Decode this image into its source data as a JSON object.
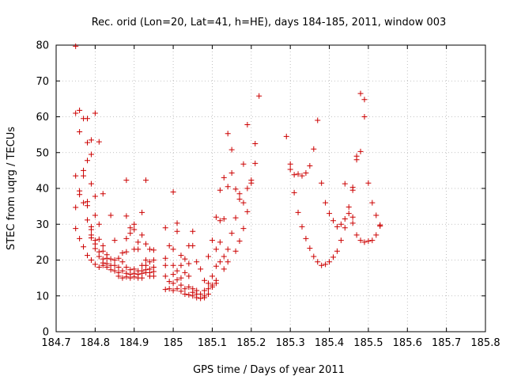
{
  "chart_data": {
    "type": "scatter",
    "title": "Rec. orid (Lon=20, Lat=41, h=HE), days 184-185, 2011, window 003",
    "xlabel": "GPS time / Days of year 2011",
    "ylabel": "STEC from uqrg / TECUs",
    "xlim": [
      184.7,
      185.8
    ],
    "ylim": [
      0,
      80
    ],
    "xticks": [
      184.7,
      184.8,
      184.9,
      185.0,
      185.1,
      185.2,
      185.3,
      185.4,
      185.5,
      185.6,
      185.7,
      185.8
    ],
    "xtick_labels": [
      "184.7",
      "184.8",
      "184.9",
      "185",
      "185.1",
      "185.2",
      "185.3",
      "185.4",
      "185.5",
      "185.6",
      "185.7",
      "185.8"
    ],
    "yticks": [
      0,
      10,
      20,
      30,
      40,
      50,
      60,
      70,
      80
    ],
    "ytick_labels": [
      "0",
      "10",
      "20",
      "30",
      "40",
      "50",
      "60",
      "70",
      "80"
    ],
    "grid": true,
    "marker": "+",
    "color": "#cc0000",
    "points": [
      [
        184.75,
        79.7
      ],
      [
        184.75,
        61.0
      ],
      [
        184.75,
        43.5
      ],
      [
        184.75,
        34.7
      ],
      [
        184.75,
        28.8
      ],
      [
        184.76,
        61.8
      ],
      [
        184.76,
        55.8
      ],
      [
        184.76,
        39.3
      ],
      [
        184.76,
        38.3
      ],
      [
        184.76,
        26.0
      ],
      [
        184.77,
        59.5
      ],
      [
        184.77,
        45.0
      ],
      [
        184.77,
        43.5
      ],
      [
        184.77,
        36.0
      ],
      [
        184.77,
        23.7
      ],
      [
        184.78,
        59.5
      ],
      [
        184.78,
        52.8
      ],
      [
        184.78,
        47.8
      ],
      [
        184.78,
        36.3
      ],
      [
        184.78,
        35.2
      ],
      [
        184.78,
        31.2
      ],
      [
        184.78,
        21.3
      ],
      [
        184.79,
        53.5
      ],
      [
        184.79,
        49.5
      ],
      [
        184.79,
        41.3
      ],
      [
        184.79,
        29.3
      ],
      [
        184.79,
        28.5
      ],
      [
        184.79,
        27.0
      ],
      [
        184.79,
        26.2
      ],
      [
        184.79,
        20.0
      ],
      [
        184.8,
        61.0
      ],
      [
        184.8,
        37.8
      ],
      [
        184.8,
        32.5
      ],
      [
        184.8,
        25.5
      ],
      [
        184.8,
        24.5
      ],
      [
        184.8,
        23.2
      ],
      [
        184.8,
        18.8
      ],
      [
        184.81,
        53.0
      ],
      [
        184.81,
        30.0
      ],
      [
        184.81,
        25.8
      ],
      [
        184.81,
        22.3
      ],
      [
        184.81,
        21.0
      ],
      [
        184.81,
        18.0
      ],
      [
        184.82,
        38.5
      ],
      [
        184.82,
        24.0
      ],
      [
        184.82,
        22.5
      ],
      [
        184.82,
        20.3
      ],
      [
        184.82,
        19.2
      ],
      [
        184.82,
        18.5
      ],
      [
        184.83,
        21.5
      ],
      [
        184.83,
        20.5
      ],
      [
        184.83,
        19.0
      ],
      [
        184.83,
        18.0
      ],
      [
        184.84,
        32.5
      ],
      [
        184.84,
        20.3
      ],
      [
        184.84,
        18.5
      ],
      [
        184.84,
        17.3
      ],
      [
        184.85,
        25.5
      ],
      [
        184.85,
        20.0
      ],
      [
        184.85,
        18.5
      ],
      [
        184.85,
        17.0
      ],
      [
        184.86,
        20.5
      ],
      [
        184.86,
        18.0
      ],
      [
        184.86,
        16.5
      ],
      [
        184.86,
        15.5
      ],
      [
        184.87,
        22.0
      ],
      [
        184.87,
        19.5
      ],
      [
        184.87,
        17.0
      ],
      [
        184.87,
        15.0
      ],
      [
        184.88,
        32.3
      ],
      [
        184.88,
        26.0
      ],
      [
        184.88,
        22.3
      ],
      [
        184.88,
        18.0
      ],
      [
        184.88,
        16.3
      ],
      [
        184.88,
        15.3
      ],
      [
        184.88,
        42.3
      ],
      [
        184.89,
        29.0
      ],
      [
        184.89,
        27.5
      ],
      [
        184.89,
        17.3
      ],
      [
        184.89,
        16.0
      ],
      [
        184.89,
        15.0
      ],
      [
        184.9,
        30.0
      ],
      [
        184.9,
        28.5
      ],
      [
        184.9,
        23.0
      ],
      [
        184.9,
        17.5
      ],
      [
        184.9,
        16.3
      ],
      [
        184.9,
        15.3
      ],
      [
        184.91,
        25.0
      ],
      [
        184.91,
        23.0
      ],
      [
        184.91,
        17.0
      ],
      [
        184.91,
        16.0
      ],
      [
        184.91,
        15.0
      ],
      [
        184.92,
        33.3
      ],
      [
        184.92,
        27.0
      ],
      [
        184.92,
        18.5
      ],
      [
        184.92,
        17.0
      ],
      [
        184.92,
        16.3
      ],
      [
        184.92,
        15.0
      ],
      [
        184.93,
        42.3
      ],
      [
        184.93,
        24.5
      ],
      [
        184.93,
        20.0
      ],
      [
        184.93,
        18.5
      ],
      [
        184.93,
        17.3
      ],
      [
        184.93,
        16.5
      ],
      [
        184.94,
        23.0
      ],
      [
        184.94,
        19.5
      ],
      [
        184.94,
        17.5
      ],
      [
        184.94,
        16.5
      ],
      [
        184.94,
        15.5
      ],
      [
        184.95,
        22.8
      ],
      [
        184.95,
        20.0
      ],
      [
        184.95,
        18.0
      ],
      [
        184.95,
        16.8
      ],
      [
        184.95,
        15.5
      ],
      [
        184.98,
        29.0
      ],
      [
        184.98,
        20.5
      ],
      [
        184.98,
        18.5
      ],
      [
        184.98,
        15.5
      ],
      [
        184.98,
        11.8
      ],
      [
        184.99,
        24.0
      ],
      [
        184.99,
        14.0
      ],
      [
        184.99,
        12.0
      ],
      [
        185.0,
        39.0
      ],
      [
        185.0,
        23.0
      ],
      [
        185.0,
        18.5
      ],
      [
        185.0,
        16.0
      ],
      [
        185.0,
        13.5
      ],
      [
        185.0,
        11.5
      ],
      [
        185.01,
        30.3
      ],
      [
        185.01,
        28.0
      ],
      [
        185.01,
        17.0
      ],
      [
        185.01,
        14.5
      ],
      [
        185.01,
        12.0
      ],
      [
        185.02,
        21.3
      ],
      [
        185.02,
        18.5
      ],
      [
        185.02,
        15.0
      ],
      [
        185.02,
        13.0
      ],
      [
        185.02,
        11.3
      ],
      [
        185.03,
        20.3
      ],
      [
        185.03,
        16.5
      ],
      [
        185.03,
        12.0
      ],
      [
        185.03,
        10.5
      ],
      [
        185.04,
        24.0
      ],
      [
        185.04,
        19.0
      ],
      [
        185.04,
        15.5
      ],
      [
        185.04,
        12.5
      ],
      [
        185.04,
        10.3
      ],
      [
        185.05,
        28.0
      ],
      [
        185.05,
        24.0
      ],
      [
        185.05,
        12.0
      ],
      [
        185.05,
        11.0
      ],
      [
        185.05,
        10.0
      ],
      [
        185.06,
        19.5
      ],
      [
        185.06,
        11.5
      ],
      [
        185.06,
        10.5
      ],
      [
        185.06,
        9.5
      ],
      [
        185.07,
        17.5
      ],
      [
        185.07,
        10.5
      ],
      [
        185.07,
        9.3
      ],
      [
        185.08,
        14.3
      ],
      [
        185.08,
        11.5
      ],
      [
        185.08,
        10.0
      ],
      [
        185.08,
        9.5
      ],
      [
        185.09,
        21.0
      ],
      [
        185.09,
        13.5
      ],
      [
        185.09,
        12.0
      ],
      [
        185.09,
        10.5
      ],
      [
        185.1,
        25.5
      ],
      [
        185.1,
        15.5
      ],
      [
        185.1,
        13.0
      ],
      [
        185.1,
        12.5
      ],
      [
        185.11,
        32.0
      ],
      [
        185.11,
        23.0
      ],
      [
        185.11,
        18.3
      ],
      [
        185.11,
        14.3
      ],
      [
        185.11,
        13.5
      ],
      [
        185.12,
        39.5
      ],
      [
        185.12,
        31.0
      ],
      [
        185.12,
        25.0
      ],
      [
        185.12,
        19.5
      ],
      [
        185.13,
        43.0
      ],
      [
        185.13,
        31.5
      ],
      [
        185.13,
        21.0
      ],
      [
        185.13,
        17.5
      ],
      [
        185.14,
        55.3
      ],
      [
        185.14,
        40.5
      ],
      [
        185.14,
        23.0
      ],
      [
        185.14,
        19.5
      ],
      [
        185.15,
        50.8
      ],
      [
        185.15,
        44.3
      ],
      [
        185.15,
        27.5
      ],
      [
        185.16,
        39.8
      ],
      [
        185.16,
        31.8
      ],
      [
        185.16,
        22.5
      ],
      [
        185.17,
        38.5
      ],
      [
        185.17,
        37.0
      ],
      [
        185.17,
        25.3
      ],
      [
        185.18,
        46.8
      ],
      [
        185.18,
        36.0
      ],
      [
        185.18,
        28.8
      ],
      [
        185.19,
        57.8
      ],
      [
        185.19,
        40.0
      ],
      [
        185.19,
        33.5
      ],
      [
        185.2,
        42.3
      ],
      [
        185.2,
        41.5
      ],
      [
        185.21,
        52.5
      ],
      [
        185.21,
        47.0
      ],
      [
        185.22,
        65.8
      ],
      [
        185.29,
        54.5
      ],
      [
        185.3,
        46.8
      ],
      [
        185.3,
        45.3
      ],
      [
        185.31,
        38.8
      ],
      [
        185.31,
        43.8
      ],
      [
        185.32,
        44.0
      ],
      [
        185.32,
        33.3
      ],
      [
        185.33,
        43.5
      ],
      [
        185.33,
        29.3
      ],
      [
        185.34,
        44.3
      ],
      [
        185.34,
        26.0
      ],
      [
        185.35,
        46.3
      ],
      [
        185.35,
        23.3
      ],
      [
        185.36,
        51.0
      ],
      [
        185.36,
        21.0
      ],
      [
        185.37,
        59.0
      ],
      [
        185.37,
        19.5
      ],
      [
        185.38,
        41.5
      ],
      [
        185.38,
        18.5
      ],
      [
        185.39,
        36.0
      ],
      [
        185.39,
        18.8
      ],
      [
        185.4,
        33.0
      ],
      [
        185.4,
        19.5
      ],
      [
        185.41,
        31.0
      ],
      [
        185.41,
        20.8
      ],
      [
        185.42,
        29.3
      ],
      [
        185.42,
        22.5
      ],
      [
        185.43,
        30.0
      ],
      [
        185.43,
        25.5
      ],
      [
        185.44,
        41.3
      ],
      [
        185.44,
        31.5
      ],
      [
        185.44,
        29.0
      ],
      [
        185.45,
        34.8
      ],
      [
        185.45,
        33.0
      ],
      [
        185.46,
        40.3
      ],
      [
        185.46,
        39.5
      ],
      [
        185.46,
        32.0
      ],
      [
        185.46,
        30.3
      ],
      [
        185.47,
        49.0
      ],
      [
        185.47,
        48.0
      ],
      [
        185.47,
        27.0
      ],
      [
        185.48,
        66.5
      ],
      [
        185.48,
        50.3
      ],
      [
        185.48,
        25.5
      ],
      [
        185.49,
        64.8
      ],
      [
        185.49,
        60.0
      ],
      [
        185.49,
        25.0
      ],
      [
        185.5,
        41.5
      ],
      [
        185.5,
        25.3
      ],
      [
        185.51,
        36.0
      ],
      [
        185.51,
        25.5
      ],
      [
        185.52,
        32.5
      ],
      [
        185.52,
        27.0
      ],
      [
        185.53,
        29.8
      ],
      [
        185.53,
        29.5
      ]
    ]
  }
}
